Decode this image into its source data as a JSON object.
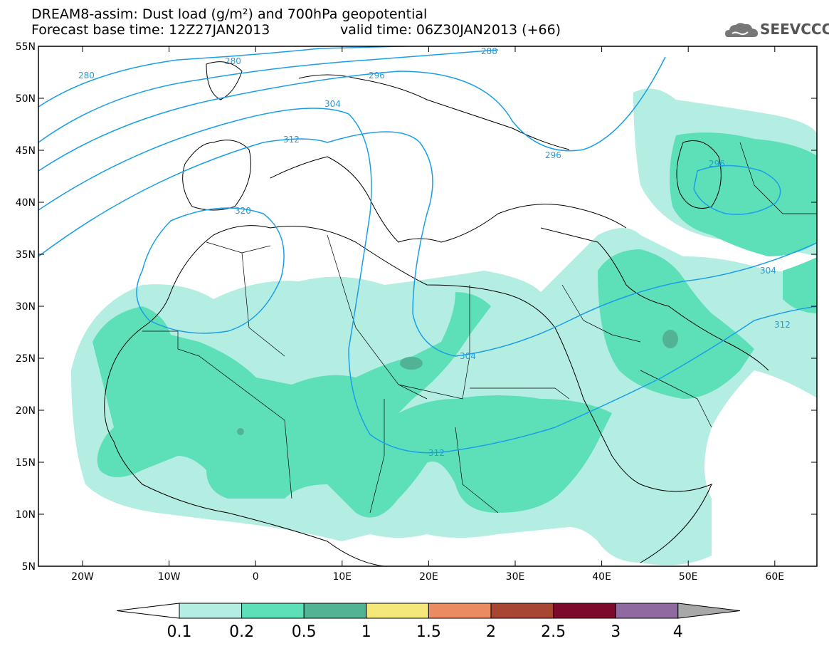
{
  "title": {
    "line1": "DREAM8-assim: Dust load (g/m²) and 700hPa geopotential",
    "line2_left": "Forecast base time: 12Z27JAN2013",
    "line2_right": "valid time: 06Z30JAN2013 (+66)"
  },
  "logo": {
    "text": "SEEVCCC",
    "icon": "cloud-icon"
  },
  "axes": {
    "lat_labels": [
      "55N",
      "50N",
      "45N",
      "40N",
      "35N",
      "30N",
      "25N",
      "20N",
      "15N",
      "10N",
      "5N"
    ],
    "lon_labels": [
      "20W",
      "10W",
      "0",
      "10E",
      "20E",
      "30E",
      "40E",
      "50E",
      "60E"
    ]
  },
  "contours": {
    "labels": [
      "280",
      "288",
      "280",
      "296",
      "304",
      "312",
      "320",
      "296",
      "296",
      "304",
      "312",
      "304",
      "312"
    ],
    "color": "#1a9ee8"
  },
  "colorbar": {
    "labels": [
      "0.1",
      "0.2",
      "0.5",
      "1",
      "1.5",
      "2",
      "2.5",
      "3",
      "4"
    ],
    "colors": [
      "#b4ede1",
      "#5de0b8",
      "#52b394",
      "#f4e87a",
      "#eb8b62",
      "#a84634",
      "#7b0a2c",
      "#8f6aa0",
      "#a8a8a8"
    ]
  }
}
